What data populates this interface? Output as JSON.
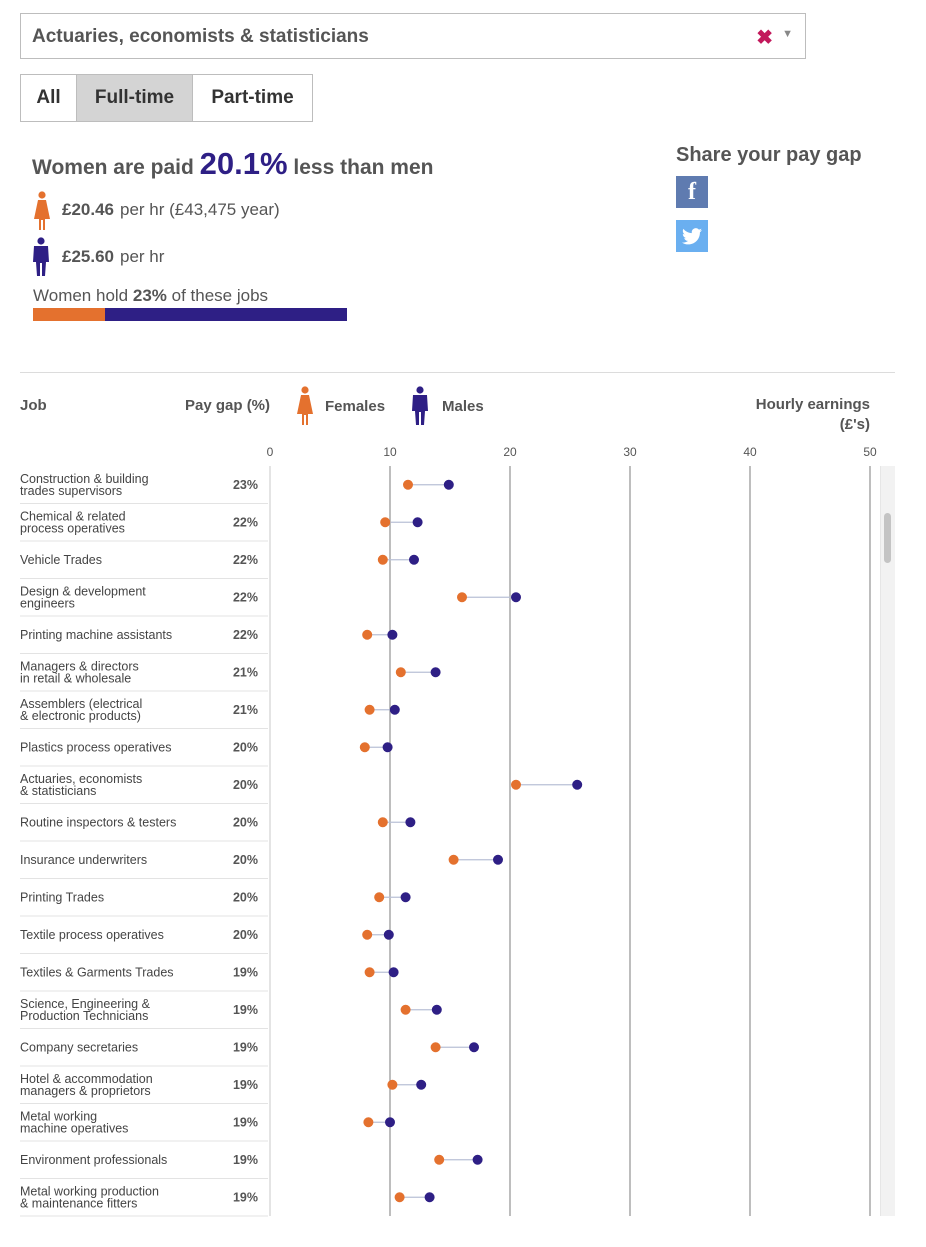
{
  "dropdown": {
    "value": "Actuaries, economists & statisticians",
    "clear_icon": "clear-x-icon",
    "arrow_icon": "caret-down-icon"
  },
  "tabs": [
    {
      "label": "All"
    },
    {
      "label": "Full-time",
      "active": true
    },
    {
      "label": "Part-time"
    }
  ],
  "summary": {
    "headline_pre": "Women are paid",
    "gap": "20.1%",
    "headline_post": "less than men",
    "female_rate": "£20.46",
    "female_detail": "per hr (£43,475 year)",
    "male_rate": "£25.60",
    "male_detail": "per hr",
    "hold_pre": "Women hold",
    "hold_pct": "23%",
    "hold_post": "of these jobs",
    "female_share": 0.23
  },
  "share": {
    "title": "Share your pay gap",
    "facebook_icon": "facebook-icon",
    "twitter_icon": "twitter-icon"
  },
  "colors": {
    "female": "#e4712e",
    "male": "#2e1f85",
    "facebook": "#3b5998",
    "twitter": "#55acee"
  },
  "columns": {
    "job": "Job",
    "gap": "Pay gap (%)",
    "females": "Females",
    "males": "Males",
    "earnings_line1": "Hourly earnings",
    "earnings_line2": "(£'s)"
  },
  "chart_data": {
    "type": "scatter",
    "xlim": [
      0,
      50
    ],
    "xticks": [
      "0",
      "10",
      "20",
      "30",
      "40",
      "50"
    ],
    "rows": [
      {
        "job": [
          "Construction & building",
          "trades supervisors"
        ],
        "gap": "23%",
        "female": 11.5,
        "male": 14.9
      },
      {
        "job": [
          "Chemical & related",
          "process operatives"
        ],
        "gap": "22%",
        "female": 9.6,
        "male": 12.3
      },
      {
        "job": [
          "Vehicle Trades"
        ],
        "gap": "22%",
        "female": 9.4,
        "male": 12.0
      },
      {
        "job": [
          "Design & development",
          "engineers"
        ],
        "gap": "22%",
        "female": 16.0,
        "male": 20.5
      },
      {
        "job": [
          "Printing machine assistants"
        ],
        "gap": "22%",
        "female": 8.1,
        "male": 10.2
      },
      {
        "job": [
          "Managers & directors",
          "in retail & wholesale"
        ],
        "gap": "21%",
        "female": 10.9,
        "male": 13.8
      },
      {
        "job": [
          "Assemblers (electrical",
          "& electronic products)"
        ],
        "gap": "21%",
        "female": 8.3,
        "male": 10.4
      },
      {
        "job": [
          "Plastics process operatives"
        ],
        "gap": "20%",
        "female": 7.9,
        "male": 9.8
      },
      {
        "job": [
          "Actuaries, economists",
          "& statisticians"
        ],
        "gap": "20%",
        "female": 20.5,
        "male": 25.6
      },
      {
        "job": [
          "Routine inspectors & testers"
        ],
        "gap": "20%",
        "female": 9.4,
        "male": 11.7
      },
      {
        "job": [
          "Insurance underwriters"
        ],
        "gap": "20%",
        "female": 15.3,
        "male": 19.0
      },
      {
        "job": [
          "Printing Trades"
        ],
        "gap": "20%",
        "female": 9.1,
        "male": 11.3
      },
      {
        "job": [
          "Textile process operatives"
        ],
        "gap": "20%",
        "female": 8.1,
        "male": 9.9
      },
      {
        "job": [
          "Textiles & Garments Trades"
        ],
        "gap": "19%",
        "female": 8.3,
        "male": 10.3
      },
      {
        "job": [
          "Science, Engineering &",
          "Production Technicians"
        ],
        "gap": "19%",
        "female": 11.3,
        "male": 13.9
      },
      {
        "job": [
          "Company secretaries"
        ],
        "gap": "19%",
        "female": 13.8,
        "male": 17.0
      },
      {
        "job": [
          "Hotel & accommodation",
          "managers & proprietors"
        ],
        "gap": "19%",
        "female": 10.2,
        "male": 12.6
      },
      {
        "job": [
          "Metal working",
          "machine operatives"
        ],
        "gap": "19%",
        "female": 8.2,
        "male": 10.0
      },
      {
        "job": [
          "Environment professionals"
        ],
        "gap": "19%",
        "female": 14.1,
        "male": 17.3
      },
      {
        "job": [
          "Metal working production",
          "& maintenance fitters"
        ],
        "gap": "19%",
        "female": 10.8,
        "male": 13.3
      }
    ]
  }
}
